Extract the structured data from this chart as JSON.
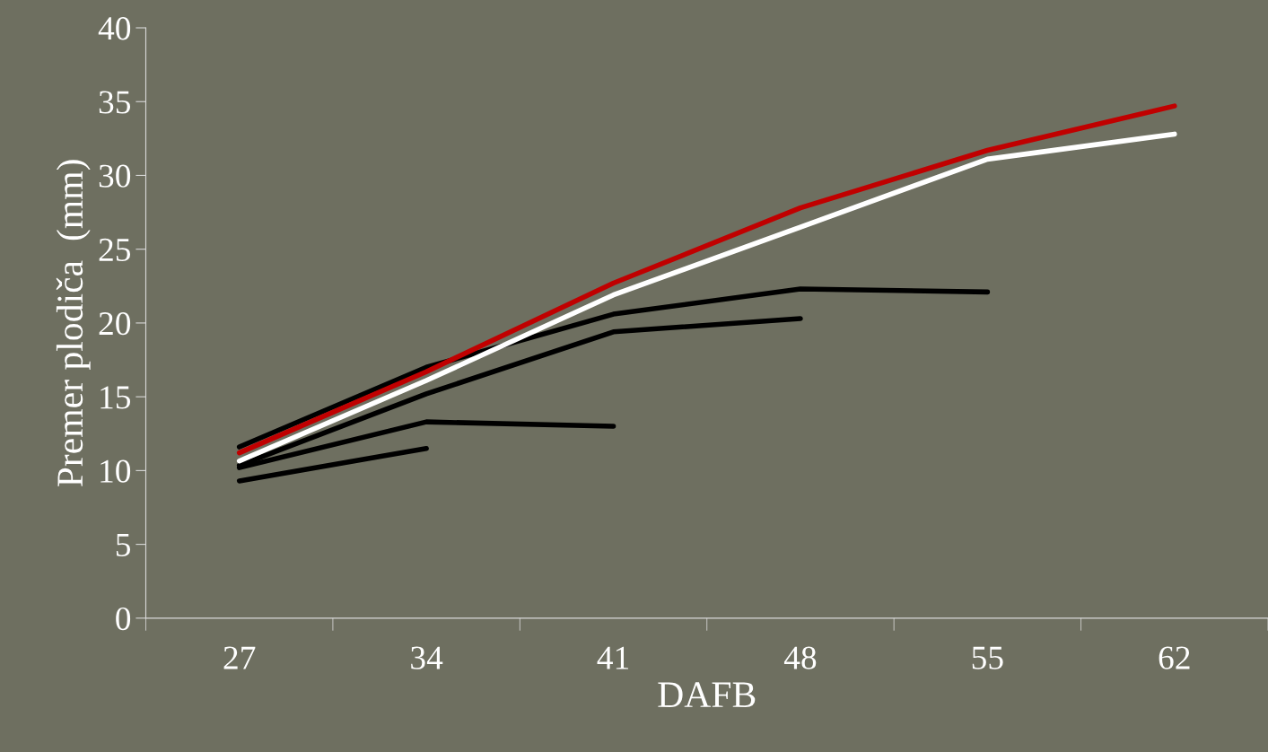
{
  "chart_data": {
    "type": "line",
    "xlabel": "DAFB",
    "ylabel": "Premer plodiča  (mm)",
    "categories": [
      "27",
      "34",
      "41",
      "48",
      "55",
      "62"
    ],
    "series": [
      {
        "color": "#000000",
        "values": [
          11.6,
          17.0,
          20.6,
          22.3,
          22.1,
          null
        ]
      },
      {
        "color": "#000000",
        "values": [
          10.35,
          15.2,
          19.4,
          20.3,
          null,
          null
        ]
      },
      {
        "color": "#000000",
        "values": [
          10.2,
          13.3,
          13.0,
          null,
          null,
          null
        ]
      },
      {
        "color": "#000000",
        "values": [
          9.3,
          11.5,
          null,
          null,
          null,
          null
        ]
      },
      {
        "color": "#ffffff",
        "values": [
          10.65,
          16.1,
          21.9,
          26.5,
          31.1,
          32.8
        ]
      },
      {
        "color": "#c00000",
        "values": [
          11.2,
          16.7,
          22.7,
          27.8,
          31.7,
          34.7
        ]
      }
    ],
    "ylim": [
      0,
      40
    ],
    "yticks": [
      0,
      5,
      10,
      15,
      20,
      25,
      30,
      35,
      40
    ],
    "grid": false,
    "legend": false,
    "marker": "none",
    "line_style": "solid"
  }
}
